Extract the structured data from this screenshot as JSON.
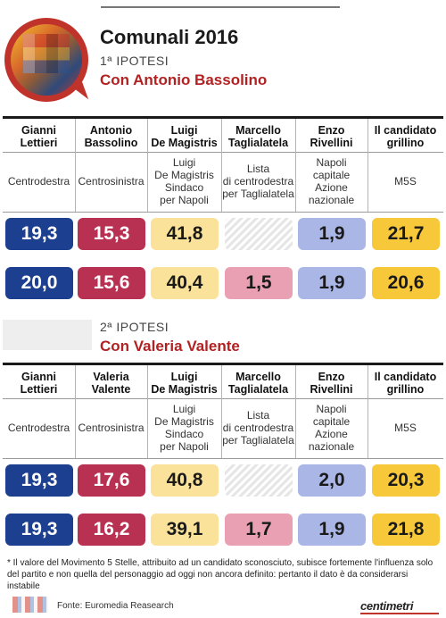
{
  "title": "Comunali 2016",
  "hypotheses": [
    {
      "label": "1ª IPOTESI",
      "subtitle": "Con Antonio Bassolino",
      "candidates": [
        {
          "name": "Gianni\nLettieri",
          "party": "Centrodestra"
        },
        {
          "name": "Antonio\nBassolino",
          "party": "Centrosinistra"
        },
        {
          "name": "Luigi\nDe Magistris",
          "party": "Luigi\nDe Magistris\nSindaco\nper Napoli"
        },
        {
          "name": "Marcello\nTaglialatela",
          "party": "Lista\ndi centrodestra\nper Taglialatela"
        },
        {
          "name": "Enzo\nRivellini",
          "party": "Napoli\ncapitale\nAzione\nnazionale"
        },
        {
          "name": "Il candidato\ngrillino",
          "party": "M5S"
        }
      ],
      "rows": [
        [
          "19,3",
          "15,3",
          "41,8",
          null,
          "1,9",
          "21,7"
        ],
        [
          "20,0",
          "15,6",
          "40,4",
          "1,5",
          "1,9",
          "20,6"
        ]
      ]
    },
    {
      "label": "2ª IPOTESI",
      "subtitle": "Con Valeria Valente",
      "candidates": [
        {
          "name": "Gianni\nLettieri",
          "party": "Centrodestra"
        },
        {
          "name": "Valeria\nValente",
          "party": "Centrosinistra"
        },
        {
          "name": "Luigi\nDe Magistris",
          "party": "Luigi\nDe Magistris\nSindaco\nper Napoli"
        },
        {
          "name": "Marcello\nTaglialatela",
          "party": "Lista\ndi centrodestra\nper Taglialatela"
        },
        {
          "name": "Enzo\nRivellini",
          "party": "Napoli\ncapitale\nAzione\nnazionale"
        },
        {
          "name": "Il candidato\ngrillino",
          "party": "M5S"
        }
      ],
      "rows": [
        [
          "19,3",
          "17,6",
          "40,8",
          null,
          "2,0",
          "20,3"
        ],
        [
          "19,3",
          "16,2",
          "39,1",
          "1,7",
          "1,9",
          "21,8"
        ]
      ]
    }
  ],
  "colors": {
    "box_bg": [
      "#1c3f8f",
      "#b83152",
      "#fbe29a",
      "#e8a0b2",
      "#aab6e6",
      "#f7c83a"
    ],
    "box_fg": [
      "#ffffff",
      "#ffffff",
      "#1a1a1a",
      "#1a1a1a",
      "#1a1a1a",
      "#1a1a1a"
    ],
    "subtitle": "#b22222"
  },
  "chart_data": {
    "type": "table",
    "title": "Comunali 2016",
    "columns": [
      "Gianni Lettieri",
      "Centrosinistra candidate",
      "Luigi De Magistris",
      "Marcello Taglialatela",
      "Enzo Rivellini",
      "Il candidato grillino"
    ],
    "hypothesis_1": {
      "label": "Con Antonio Bassolino",
      "series": [
        {
          "values": [
            19.3,
            15.3,
            41.8,
            null,
            1.9,
            21.7
          ]
        },
        {
          "values": [
            20.0,
            15.6,
            40.4,
            1.5,
            1.9,
            20.6
          ]
        }
      ]
    },
    "hypothesis_2": {
      "label": "Con Valeria Valente",
      "series": [
        {
          "values": [
            19.3,
            17.6,
            40.8,
            null,
            2.0,
            20.3
          ]
        },
        {
          "values": [
            19.3,
            16.2,
            39.1,
            1.7,
            1.9,
            21.8
          ]
        }
      ]
    }
  },
  "footnote": "* Il valore del Movimento 5 Stelle, attribuito ad un candidato sconosciuto, subisce fortemente l'influenza solo del partito e non quella del personaggio ad oggi non ancora definito: pertanto il dato è da considerarsi instabile",
  "source": "Fonte: Euromedia Reasearch",
  "brand": "centimetri"
}
